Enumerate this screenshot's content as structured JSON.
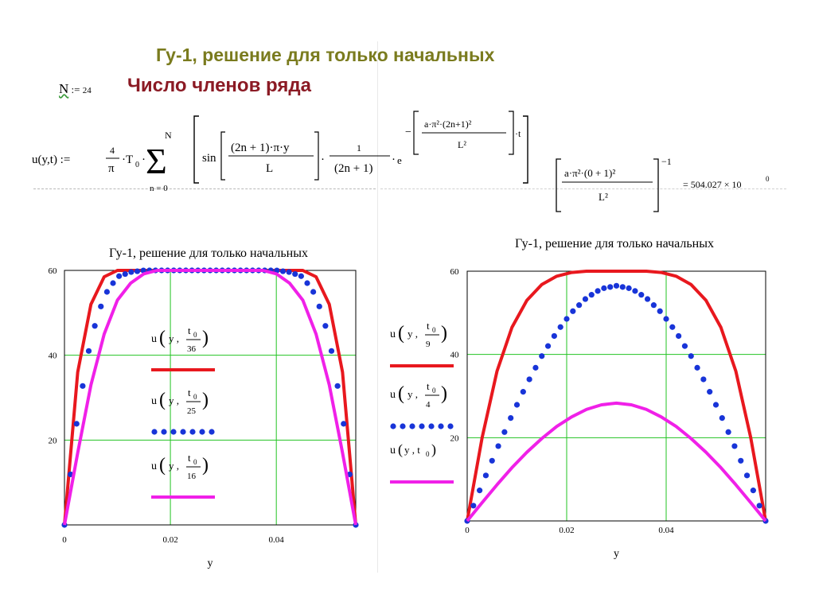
{
  "slide": {
    "title": "Гу-1, решение для только начальных",
    "n_symbol": "N",
    "n_assign": ":=",
    "n_value": "24",
    "series_title": "Число членов  ряда"
  },
  "formula": {
    "lhs": "u(y,t) :=",
    "coef_num": "4",
    "coef_den": "π",
    "t0": "T",
    "t0_sub": "0",
    "sum_upper": "N",
    "sum_lower": "n = 0",
    "sin": "sin",
    "sin_num": "(2n + 1)·π·y",
    "sin_den": "L",
    "inv_num": "1",
    "inv_den": "(2n + 1)",
    "exp_base": "e",
    "exp_num": "a·π²·(2n+1)²",
    "exp_den": "L²",
    "exp_tail": "·t",
    "check_num": "a·π²·(0 + 1)²",
    "check_den": "L²",
    "check_power": "−1",
    "check_result": "= 504.027 × 10",
    "check_result_exp": "0"
  },
  "chart_data": [
    {
      "type": "line",
      "title": "Гу-1, решение для только начальных",
      "xlabel": "y",
      "ylabel": "",
      "xlim": [
        0,
        0.055
      ],
      "ylim": [
        0,
        60
      ],
      "grid": true,
      "x_ticks": [
        "0",
        "0.02",
        "0.04"
      ],
      "y_ticks": [
        "20",
        "40",
        "60"
      ],
      "legend_placement": "center",
      "x": [
        0.0,
        0.0025,
        0.005,
        0.0075,
        0.01,
        0.0125,
        0.015,
        0.0175,
        0.02,
        0.0225,
        0.025,
        0.0275,
        0.03,
        0.0325,
        0.035,
        0.0375,
        0.04,
        0.0425,
        0.045,
        0.0475,
        0.05,
        0.0525,
        0.055
      ],
      "series": [
        {
          "name": "u(y, t0/36)",
          "color": "#e8181e",
          "style": "solid",
          "values": [
            0,
            36,
            52,
            58.5,
            60,
            60,
            60,
            60,
            60,
            60,
            60,
            60,
            60,
            60,
            60,
            60,
            60,
            60,
            60,
            58.5,
            52,
            36,
            0
          ]
        },
        {
          "name": "u(y, t0/25)",
          "color": "#1834d8",
          "style": "dotted",
          "values": [
            0,
            26,
            44,
            54,
            58.5,
            59.6,
            60,
            60,
            60,
            60,
            60,
            60,
            60,
            60,
            60,
            60,
            60,
            59.6,
            58.5,
            54,
            44,
            26,
            0
          ]
        },
        {
          "name": "u(y, t0/16)",
          "color": "#f020e8",
          "style": "solid",
          "values": [
            0,
            17,
            33,
            45,
            53,
            57,
            59.2,
            60,
            60,
            60,
            60,
            60,
            60,
            60,
            60,
            60,
            59.2,
            57,
            53,
            45,
            33,
            17,
            0
          ]
        }
      ]
    },
    {
      "type": "line",
      "title": "Гу-1, решение для только начальных",
      "xlabel": "y",
      "ylabel": "",
      "xlim": [
        0,
        0.06
      ],
      "ylim": [
        0,
        60
      ],
      "grid": true,
      "x_ticks": [
        "0",
        "0.02",
        "0.04"
      ],
      "y_ticks": [
        "20",
        "40",
        "60"
      ],
      "legend_placement": "left",
      "x": [
        0.0,
        0.003,
        0.006,
        0.009,
        0.012,
        0.015,
        0.018,
        0.021,
        0.024,
        0.027,
        0.03,
        0.033,
        0.036,
        0.039,
        0.042,
        0.045,
        0.048,
        0.051,
        0.054,
        0.057,
        0.06
      ],
      "series": [
        {
          "name": "u(y, t0/9)",
          "color": "#e8181e",
          "style": "solid",
          "values": [
            0,
            20,
            36,
            46.5,
            53,
            56.8,
            58.8,
            59.7,
            60,
            60,
            60,
            60,
            60,
            59.7,
            58.8,
            56.8,
            53,
            46.5,
            36,
            20,
            0
          ]
        },
        {
          "name": "u(y, t0/4)",
          "color": "#1834d8",
          "style": "dotted",
          "values": [
            0,
            8.8,
            17.3,
            25.4,
            32.9,
            39.6,
            45.4,
            50.1,
            53.6,
            55.8,
            56.5,
            55.8,
            53.6,
            50.1,
            45.4,
            39.6,
            32.9,
            25.4,
            17.3,
            8.8,
            0
          ]
        },
        {
          "name": "u(y, t0)",
          "color": "#f020e8",
          "style": "solid",
          "values": [
            0,
            4.4,
            8.7,
            12.8,
            16.5,
            19.8,
            22.7,
            25,
            26.8,
            27.9,
            28.3,
            27.9,
            26.8,
            25,
            22.7,
            19.8,
            16.5,
            12.8,
            8.7,
            4.4,
            0
          ]
        }
      ]
    }
  ]
}
